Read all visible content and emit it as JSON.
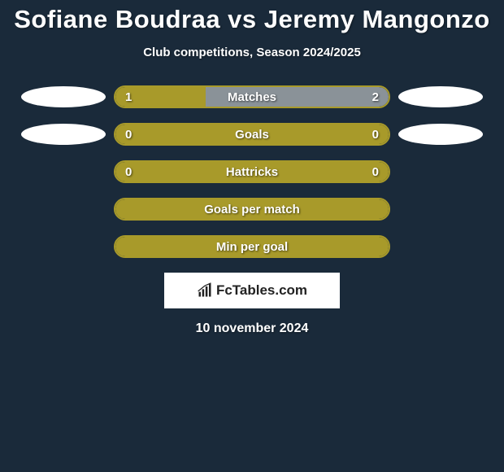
{
  "background_color": "#1a2a3a",
  "title": "Sofiane Boudraa vs Jeremy Mangonzo",
  "title_fontsize": 31,
  "title_color": "#ffffff",
  "subtitle": "Club competitions, Season 2024/2025",
  "subtitle_fontsize": 15,
  "subtitle_color": "#ffffff",
  "ellipse_color": "#ffffff",
  "colors": {
    "olive": "#a89a2a",
    "olive_border": "#a89a2a",
    "grey": "#8a9298",
    "bar_bg_empty": "#1a2a3a"
  },
  "rows": [
    {
      "label": "Matches",
      "left_val": "1",
      "right_val": "2",
      "show_ellipses": true,
      "left_fill_pct": 33,
      "left_fill_color": "#a89a2a",
      "right_fill_pct": 67,
      "right_fill_color": "#8a9298",
      "border_color": "#a89a2a"
    },
    {
      "label": "Goals",
      "left_val": "0",
      "right_val": "0",
      "show_ellipses": true,
      "left_fill_pct": 0,
      "right_fill_pct": 100,
      "right_fill_color": "#a89a2a",
      "border_color": "#a89a2a"
    },
    {
      "label": "Hattricks",
      "left_val": "0",
      "right_val": "0",
      "show_ellipses": false,
      "left_fill_pct": 0,
      "right_fill_pct": 100,
      "right_fill_color": "#a89a2a",
      "border_color": "#a89a2a"
    },
    {
      "label": "Goals per match",
      "left_val": "",
      "right_val": "",
      "show_ellipses": false,
      "left_fill_pct": 0,
      "right_fill_pct": 100,
      "right_fill_color": "#a89a2a",
      "border_color": "#a89a2a"
    },
    {
      "label": "Min per goal",
      "left_val": "",
      "right_val": "",
      "show_ellipses": false,
      "left_fill_pct": 0,
      "right_fill_pct": 100,
      "right_fill_color": "#a89a2a",
      "border_color": "#a89a2a"
    }
  ],
  "logo_text": "FcTables.com",
  "date": "10 november 2024",
  "date_fontsize": 16,
  "date_color": "#ffffff"
}
